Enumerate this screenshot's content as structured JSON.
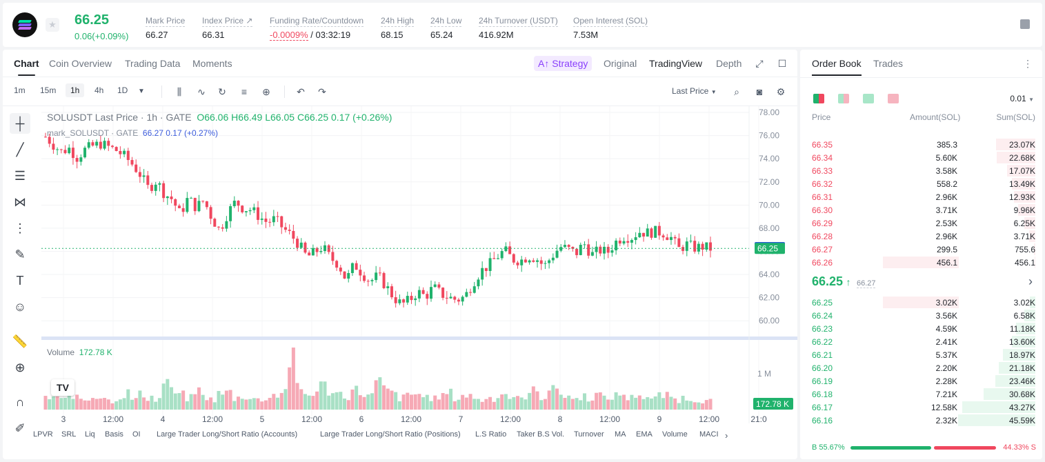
{
  "header": {
    "last_price": "66.25",
    "change": "0.06(+0.09%)",
    "stats": [
      {
        "label": "Mark Price",
        "value": "66.27"
      },
      {
        "label": "Index Price ↗",
        "value": "66.31"
      },
      {
        "label": "Funding Rate/Countdown",
        "value_neg": "-0.0009%",
        "value": "/ 03:32:19"
      },
      {
        "label": "24h High",
        "value": "68.15"
      },
      {
        "label": "24h Low",
        "value": "65.24"
      },
      {
        "label": "24h Turnover (USDT)",
        "value": "416.92M"
      },
      {
        "label": "Open Interest (SOL)",
        "value": "7.53M"
      }
    ]
  },
  "chart_tabs": [
    "Chart",
    "Coin Overview",
    "Trading Data",
    "Moments"
  ],
  "view_tabs": {
    "strategy": "Strategy",
    "original": "Original",
    "tradingview": "TradingView",
    "depth": "Depth"
  },
  "timeframes": [
    "1m",
    "15m",
    "1h",
    "4h",
    "1D"
  ],
  "price_type": "Last Price",
  "legend": {
    "symbol": "SOLUSDT Last Price · 1h · GATE",
    "o": "66.06",
    "h": "66.49",
    "l": "66.05",
    "c": "66.25",
    "chg": "0.17 (+0.26%)",
    "mark_label": "mark_SOLUSDT · GATE",
    "mark_vals": "66.27  0.17 (+0.27%)"
  },
  "volume_label": "Volume",
  "volume_value": "172.78 K",
  "indicators": [
    "LPVR",
    "SRL",
    "Liq",
    "Basis",
    "OI",
    "Large Trader Long/Short Ratio (Accounts)",
    "Large Trader Long/Short Ratio (Positions)",
    "L.S Ratio",
    "Taker B.S Vol.",
    "Turnover",
    "MA",
    "EMA",
    "Volume",
    "MACI"
  ],
  "colors": {
    "up": "#20b26c",
    "down": "#f0475e",
    "accent": "#8a3ffc",
    "mark": "#2a5bd7"
  },
  "chart_data": {
    "type": "candlestick",
    "y_ticks": [
      "78.00",
      "76.00",
      "74.00",
      "72.00",
      "70.00",
      "68.00",
      "66.00",
      "64.00",
      "62.00",
      "60.00"
    ],
    "ylim": [
      59.0,
      78.3
    ],
    "x_ticks": [
      "3",
      "12:00",
      "4",
      "12:00",
      "5",
      "12:00",
      "6",
      "12:00",
      "7",
      "12:00",
      "8",
      "12:00",
      "9",
      "12:00",
      "21:0"
    ],
    "price_labels": {
      "mark": "66.27",
      "last": "66.25"
    },
    "volume_axis_label": "1 M",
    "volume_label_value": "172.78 K",
    "close_path": [
      75.9,
      75.2,
      74.6,
      74.9,
      74.1,
      74.8,
      75.1,
      75.3,
      75.0,
      74.7,
      74.2,
      73.5,
      72.6,
      71.4,
      72.1,
      71.0,
      70.5,
      69.2,
      70.6,
      69.8,
      70.4,
      68.9,
      67.8,
      69.3,
      70.3,
      69.7,
      69.6,
      69.0,
      68.5,
      68.8,
      68.0,
      67.4,
      66.6,
      65.5,
      65.9,
      66.4,
      65.4,
      64.9,
      63.5,
      64.9,
      64.1,
      63.4,
      63.9,
      63.0,
      62.0,
      61.4,
      61.8,
      62.5,
      62.1,
      62.9,
      62.3,
      62.0,
      61.8,
      62.1,
      63.3,
      64.3,
      64.8,
      65.5,
      66.1,
      65.3,
      65.2,
      65.6,
      65.4,
      64.7,
      65.6,
      66.4,
      66.2,
      65.8,
      66.7,
      65.7,
      66.1,
      65.9,
      66.8,
      67.3,
      67.2,
      67.7,
      67.6,
      67.7,
      67.6,
      67.2,
      66.2,
      66.6,
      66.3,
      66.4,
      66.25
    ],
    "volumes": [
      0.22,
      0.24,
      0.18,
      0.3,
      0.21,
      0.19,
      0.27,
      0.25,
      0.17,
      0.22,
      0.31,
      0.2,
      0.28,
      0.24,
      0.19,
      0.55,
      0.33,
      0.27,
      0.22,
      0.35,
      0.25,
      0.19,
      0.29,
      0.32,
      0.22,
      0.26,
      0.21,
      0.18,
      0.24,
      0.28,
      0.35,
      1.0,
      0.41,
      0.28,
      0.34,
      0.44,
      0.37,
      0.3,
      0.27,
      0.36,
      0.32,
      0.26,
      0.49,
      0.38,
      0.29,
      0.22,
      0.26,
      0.3,
      0.24,
      0.2,
      0.26,
      0.3,
      0.22,
      0.27,
      0.25,
      0.18,
      0.22,
      0.26,
      0.3,
      0.24,
      0.2,
      0.28,
      0.34,
      0.25,
      0.46,
      0.3,
      0.27,
      0.2,
      0.25,
      0.23,
      0.28,
      0.2,
      0.26,
      0.29,
      0.22,
      0.3,
      0.24,
      0.2,
      0.27,
      0.25,
      0.19,
      0.22,
      0.2,
      0.18,
      0.16
    ]
  },
  "orderbook": {
    "tabs": [
      "Order Book",
      "Trades"
    ],
    "precision": "0.01",
    "headers": {
      "price": "Price",
      "amount": "Amount(SOL)",
      "sum": "Sum(SOL)"
    },
    "asks": [
      {
        "price": "66.35",
        "amount": "385.3",
        "sum": "23.07K",
        "sum_frac": 0.51,
        "amt_frac": 0.0
      },
      {
        "price": "66.34",
        "amount": "5.60K",
        "sum": "22.68K",
        "sum_frac": 0.5,
        "amt_frac": 0.0
      },
      {
        "price": "66.33",
        "amount": "3.58K",
        "sum": "17.07K",
        "sum_frac": 0.37,
        "amt_frac": 0.0
      },
      {
        "price": "66.32",
        "amount": "558.2",
        "sum": "13.49K",
        "sum_frac": 0.3,
        "amt_frac": 0.0
      },
      {
        "price": "66.31",
        "amount": "2.96K",
        "sum": "12.93K",
        "sum_frac": 0.28,
        "amt_frac": 0.0
      },
      {
        "price": "66.30",
        "amount": "3.71K",
        "sum": "9.96K",
        "sum_frac": 0.22,
        "amt_frac": 0.0
      },
      {
        "price": "66.29",
        "amount": "2.53K",
        "sum": "6.25K",
        "sum_frac": 0.14,
        "amt_frac": 0.0
      },
      {
        "price": "66.28",
        "amount": "2.96K",
        "sum": "3.71K",
        "sum_frac": 0.08,
        "amt_frac": 0.0
      },
      {
        "price": "66.27",
        "amount": "299.5",
        "sum": "755.6",
        "sum_frac": 0.02,
        "amt_frac": 0.0
      },
      {
        "price": "66.26",
        "amount": "456.1",
        "sum": "456.1",
        "sum_frac": 0.01,
        "amt_frac": 1.0
      }
    ],
    "mid": {
      "price": "66.25",
      "arrow": "↑",
      "mark": "66.27",
      "chev": "›"
    },
    "bids": [
      {
        "price": "66.25",
        "amount": "3.02K",
        "sum": "3.02K",
        "sum_frac": 0.07,
        "amt_frac": 1.0
      },
      {
        "price": "66.24",
        "amount": "3.56K",
        "sum": "6.58K",
        "sum_frac": 0.14,
        "amt_frac": 0.0
      },
      {
        "price": "66.23",
        "amount": "4.59K",
        "sum": "11.18K",
        "sum_frac": 0.25,
        "amt_frac": 0.0
      },
      {
        "price": "66.22",
        "amount": "2.41K",
        "sum": "13.60K",
        "sum_frac": 0.3,
        "amt_frac": 0.0
      },
      {
        "price": "66.21",
        "amount": "5.37K",
        "sum": "18.97K",
        "sum_frac": 0.42,
        "amt_frac": 0.0
      },
      {
        "price": "66.20",
        "amount": "2.20K",
        "sum": "21.18K",
        "sum_frac": 0.47,
        "amt_frac": 0.0
      },
      {
        "price": "66.19",
        "amount": "2.28K",
        "sum": "23.46K",
        "sum_frac": 0.52,
        "amt_frac": 0.0
      },
      {
        "price": "66.18",
        "amount": "7.21K",
        "sum": "30.68K",
        "sum_frac": 0.67,
        "amt_frac": 0.0
      },
      {
        "price": "66.17",
        "amount": "12.58K",
        "sum": "43.27K",
        "sum_frac": 0.95,
        "amt_frac": 0.0
      },
      {
        "price": "66.16",
        "amount": "2.32K",
        "sum": "45.59K",
        "sum_frac": 1.0,
        "amt_frac": 0.0
      }
    ],
    "buy_pct_label": "B 55.67%",
    "sell_pct_label": "44.33% S",
    "buy_frac": 0.5567
  }
}
